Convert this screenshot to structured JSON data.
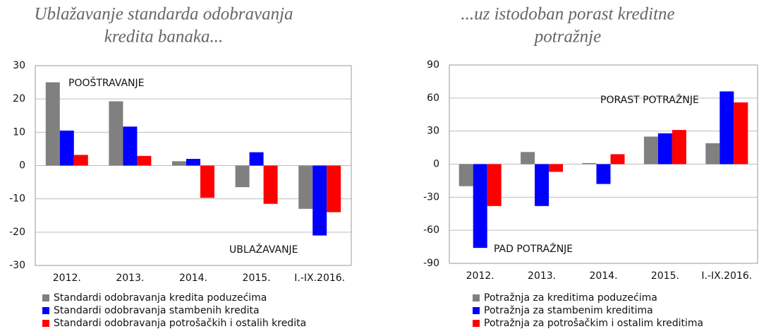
{
  "chart_data": [
    {
      "type": "bar",
      "title_lines": [
        "Ublažavanje standarda odobravanja",
        "kredita banaka..."
      ],
      "categories": [
        "2012.",
        "2013.",
        "2014.",
        "2015.",
        "I.-IX.2016."
      ],
      "series": [
        {
          "name": "Standardi odobravanja kredita poduzećima",
          "color": "#808080",
          "values": [
            25,
            19.3,
            1.3,
            -6.5,
            -13
          ]
        },
        {
          "name": "Standardi odobravanja stambenih kredita",
          "color": "#0000ff",
          "values": [
            10.5,
            11.7,
            2,
            4,
            -21
          ]
        },
        {
          "name": "Standardi odobravanja potrošačkih i ostalih kredita",
          "color": "#ff0000",
          "values": [
            3.2,
            2.9,
            -9.7,
            -11.5,
            -14
          ]
        }
      ],
      "annotations": [
        "POOŠTRAVANJE",
        "UBLAŽAVANJE"
      ],
      "ylim": [
        -30,
        30
      ],
      "yticks": [
        -30,
        -20,
        -10,
        0,
        10,
        20,
        30
      ],
      "grid": true
    },
    {
      "type": "bar",
      "title_lines": [
        "...uz istodoban porast kreditne",
        "potražnje"
      ],
      "categories": [
        "2012.",
        "2013.",
        "2014.",
        "2015.",
        "I.-IX.2016."
      ],
      "series": [
        {
          "name": "Potražnja za kreditima poduzećima",
          "color": "#808080",
          "values": [
            -20,
            11,
            1,
            25,
            19
          ]
        },
        {
          "name": "Potražnja za stambenim kreditima",
          "color": "#0000ff",
          "values": [
            -76,
            -38,
            -18,
            28,
            66
          ]
        },
        {
          "name": "Potražnja za potrošačkim i ostalim kreditima",
          "color": "#ff0000",
          "values": [
            -38,
            -7,
            9,
            31,
            56
          ]
        }
      ],
      "annotations": [
        "PORAST POTRAŽNJE",
        "PAD POTRAŽNJE"
      ],
      "ylim": [
        -90,
        90
      ],
      "yticks": [
        -90,
        -60,
        -30,
        0,
        30,
        60,
        90
      ],
      "grid": true
    }
  ]
}
